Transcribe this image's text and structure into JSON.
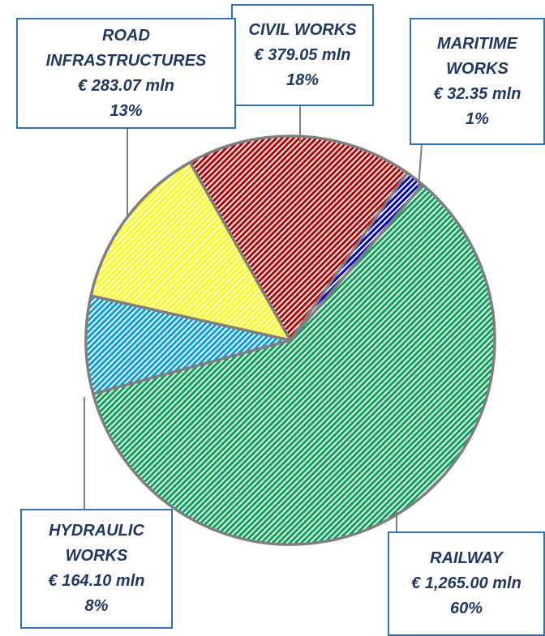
{
  "chart_data": {
    "type": "pie",
    "categories": [
      "CIVIL WORKS",
      "MARITIME WORKS",
      "RAILWAY",
      "HYDRAULIC WORKS",
      "ROAD INFRASTRUCTURES"
    ],
    "values": [
      379.05,
      32.35,
      1265.0,
      164.1,
      283.07
    ],
    "value_labels": [
      "€ 379.05 mln",
      "€ 32.35 mln",
      "€ 1,265.00 mln",
      "€ 164.10 mln",
      "€ 283.07 mln"
    ],
    "percent_labels": [
      "18%",
      "1%",
      "60%",
      "8%",
      "13%"
    ],
    "colors": [
      "#c00000",
      "#0000cc",
      "#00a651",
      "#00a0e0",
      "#ffff00"
    ]
  }
}
